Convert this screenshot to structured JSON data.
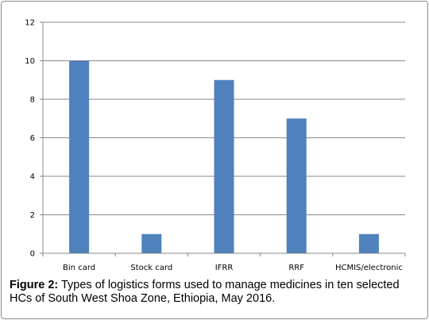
{
  "chart_data": {
    "type": "bar",
    "categories": [
      "Bin card",
      "Stock card",
      "IFRR",
      "RRF",
      "HCMIS/electronic"
    ],
    "values": [
      10,
      1,
      9,
      7,
      1
    ],
    "ylim": [
      0,
      12
    ],
    "yticks": [
      "0",
      "2",
      "4",
      "6",
      "8",
      "10",
      "12"
    ],
    "grid": true,
    "legend": "none",
    "bar_color": "#4f81bd",
    "xlabel": "",
    "ylabel": ""
  },
  "caption": {
    "label": "Figure 2:",
    "text": " Types of logistics forms used to manage medicines in ten selected HCs of South West Shoa Zone, Ethiopia, May 2016."
  }
}
